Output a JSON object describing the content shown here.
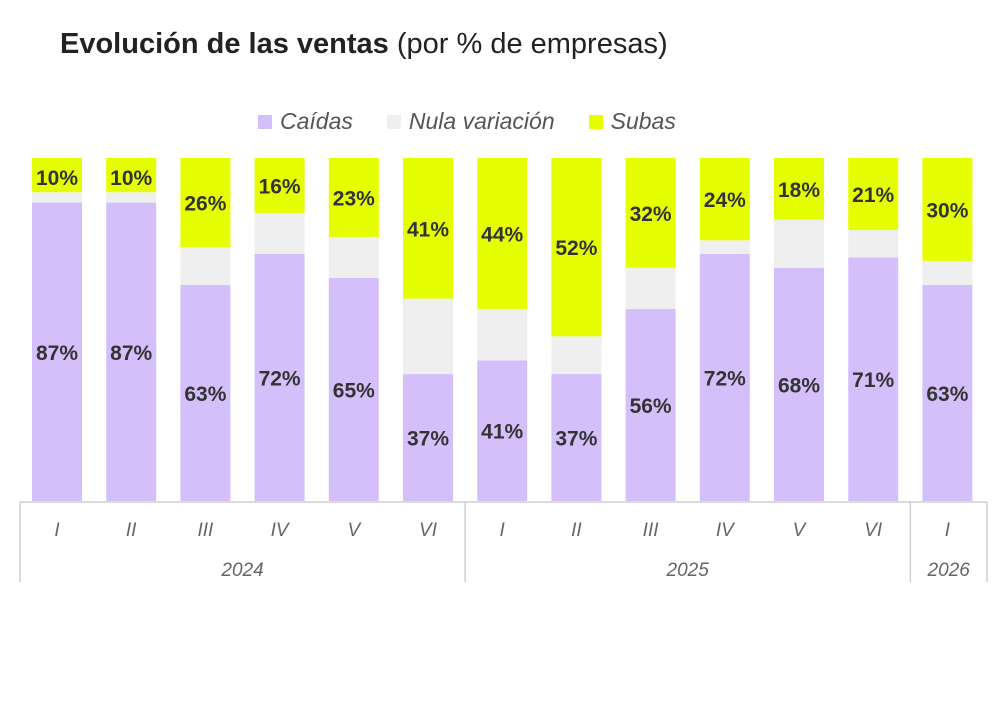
{
  "title": {
    "bold": "Evolución de las ventas",
    "normal": " (por % de empresas)"
  },
  "chart_data": {
    "type": "bar",
    "stacked": true,
    "percent": true,
    "legend_position": "top",
    "grid": false,
    "ylim": [
      0,
      100
    ],
    "categories": [
      "I",
      "II",
      "III",
      "IV",
      "V",
      "VI",
      "I",
      "II",
      "III",
      "IV",
      "V",
      "VI",
      "I"
    ],
    "groups": [
      {
        "label": "2024",
        "count": 6
      },
      {
        "label": "2025",
        "count": 6
      },
      {
        "label": "2026",
        "count": 1
      }
    ],
    "series": [
      {
        "name": "Caídas",
        "color": "#d5bffb",
        "values": [
          87,
          87,
          63,
          72,
          65,
          37,
          41,
          37,
          56,
          72,
          68,
          71,
          63
        ],
        "labels": true
      },
      {
        "name": "Nula variación",
        "color": "#efefef",
        "values": [
          3,
          3,
          11,
          12,
          12,
          22,
          15,
          11,
          12,
          4,
          14,
          8,
          7
        ],
        "labels": false
      },
      {
        "name": "Subas",
        "color": "#e6ff00",
        "values": [
          10,
          10,
          26,
          16,
          23,
          41,
          44,
          52,
          32,
          24,
          18,
          21,
          30
        ],
        "labels": true
      }
    ]
  }
}
